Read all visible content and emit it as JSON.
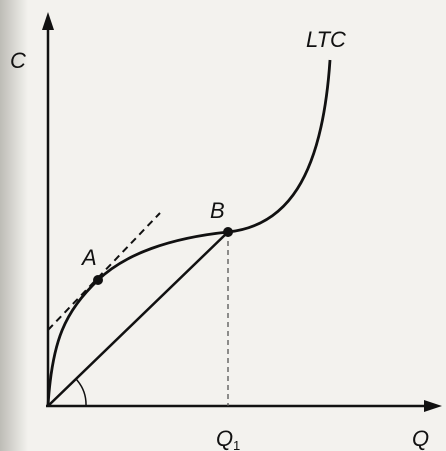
{
  "axes": {
    "y_label": "C",
    "x_label": "Q"
  },
  "curve": {
    "label": "LTC"
  },
  "points": {
    "a": "A",
    "b": "B"
  },
  "x_mark": {
    "label": "Q",
    "subscript": "1"
  }
}
